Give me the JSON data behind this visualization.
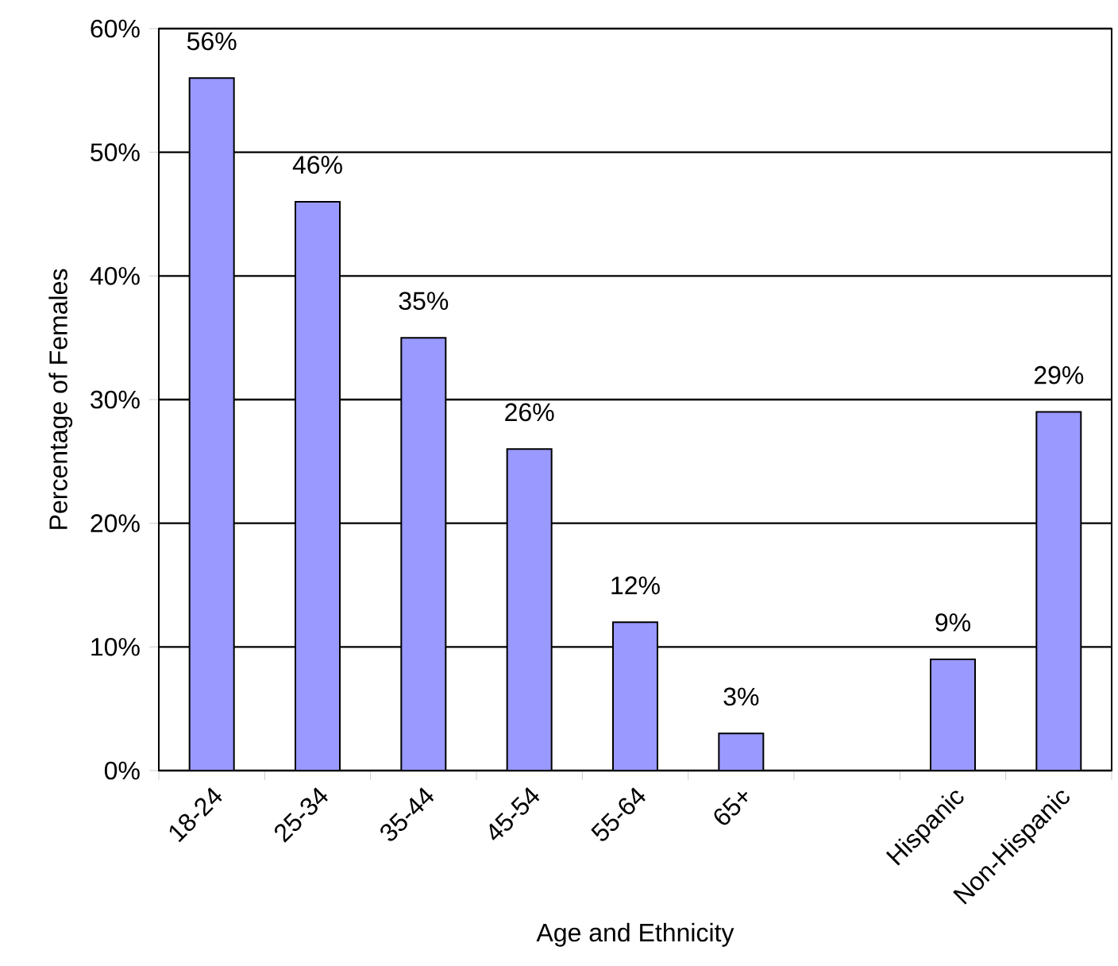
{
  "chart_data": {
    "type": "bar",
    "xlabel": "Age and Ethnicity",
    "ylabel": "Percentage of Females",
    "categories": [
      "18-24",
      "25-34",
      "35-44",
      "45-54",
      "55-64",
      "65+",
      null,
      "Hispanic",
      "Non-Hispanic"
    ],
    "values": [
      56,
      46,
      35,
      26,
      12,
      3,
      null,
      9,
      29
    ],
    "value_labels": [
      "56%",
      "46%",
      "35%",
      "26%",
      "12%",
      "3%",
      null,
      "9%",
      "29%"
    ],
    "color": "#9999ff",
    "ylim": [
      0,
      60
    ],
    "yticks": [
      {
        "value": 0,
        "label": "0%"
      },
      {
        "value": 10,
        "label": "10%"
      },
      {
        "value": 20,
        "label": "20%"
      },
      {
        "value": 30,
        "label": "30%"
      },
      {
        "value": 40,
        "label": "40%"
      },
      {
        "value": 50,
        "label": "50%"
      },
      {
        "value": 60,
        "label": "60%"
      }
    ],
    "grid": "y"
  }
}
